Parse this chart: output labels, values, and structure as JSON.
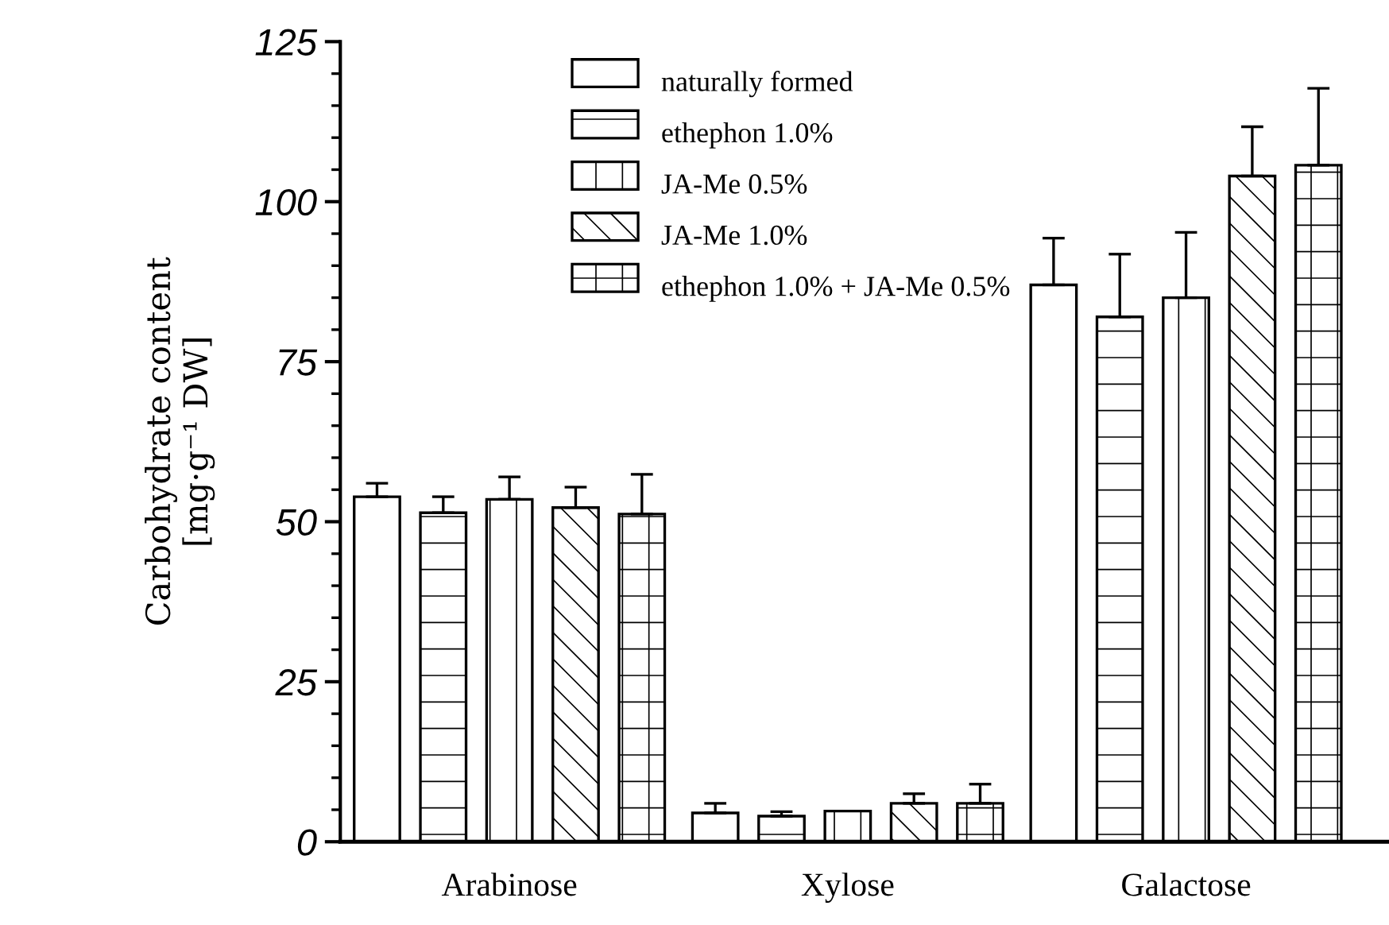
{
  "chart_data": {
    "type": "bar",
    "ylabel": "Carbohydrate content\n[mg·g⁻¹ DW]",
    "categories": [
      "Arabinose",
      "Xylose",
      "Galactose"
    ],
    "series": [
      {
        "name": "naturally formed",
        "color": "#ffffff",
        "values": [
          53.9,
          4.5,
          87
        ],
        "errors": [
          2.1,
          1.5,
          7.3
        ]
      },
      {
        "name": "ethephon 1.0%",
        "color": "#ffffff",
        "values": [
          51.4,
          4,
          82
        ],
        "errors": [
          2.5,
          0.7,
          9.8
        ]
      },
      {
        "name": "JA-Me 0.5%",
        "color": "#ffffff",
        "values": [
          53.5,
          4.8,
          85
        ],
        "errors": [
          3.5,
          null,
          10.2
        ]
      },
      {
        "name": "JA-Me 1.0%",
        "color": "#ffffff",
        "values": [
          52.2,
          6,
          104
        ],
        "errors": [
          3.2,
          1.5,
          7.7
        ]
      },
      {
        "name": "ethephon 1.0% + JA-Me 0.5%",
        "color": "#ffffff",
        "values": [
          51.2,
          6,
          105.7
        ],
        "errors": [
          6.2,
          3,
          12
        ]
      }
    ],
    "ylim": [
      0,
      125
    ],
    "yticks": [
      0,
      25,
      50,
      75,
      100,
      125
    ],
    "grid": false,
    "legend": "top"
  }
}
